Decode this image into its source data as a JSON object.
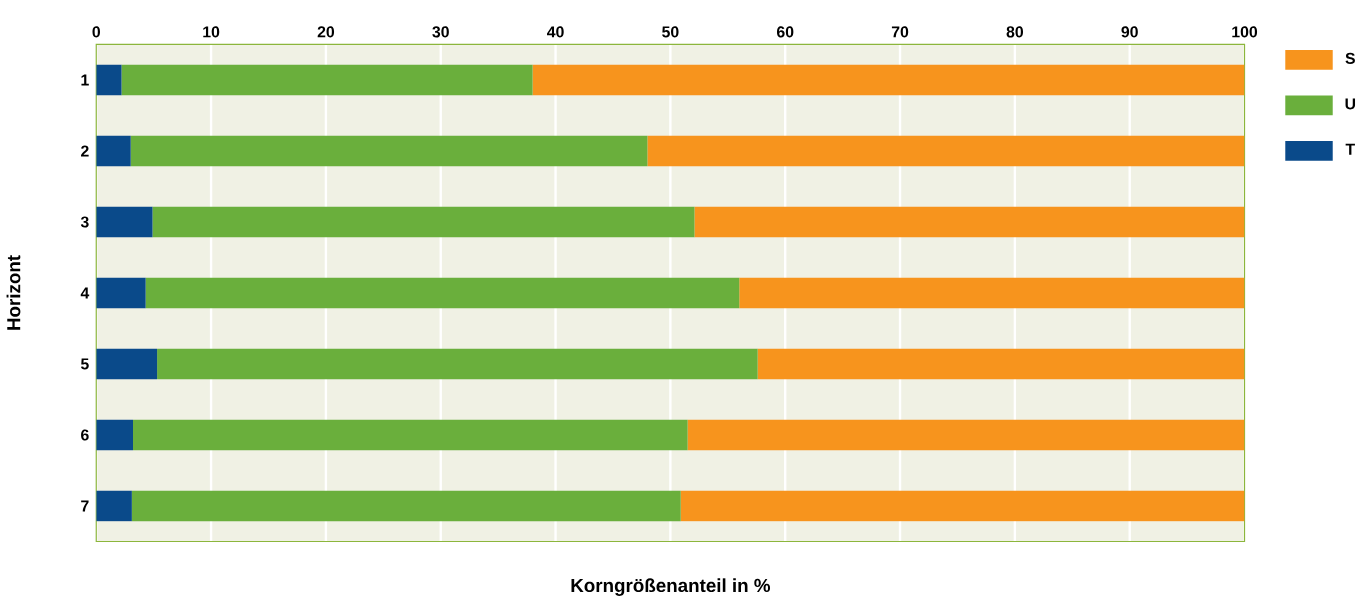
{
  "chart_data": {
    "type": "bar",
    "orientation": "horizontal",
    "stacked": true,
    "xlabel": "Korngrößenanteil in %",
    "ylabel": "Horizont",
    "categories": [
      "1",
      "2",
      "3",
      "4",
      "5",
      "6",
      "7"
    ],
    "series": [
      {
        "name": "T",
        "color": "#0a4a8a",
        "values": [
          2.2,
          3.0,
          4.9,
          4.3,
          5.3,
          3.2,
          3.1
        ]
      },
      {
        "name": "U",
        "color": "#6aaf3c",
        "values": [
          35.8,
          45.0,
          47.2,
          51.7,
          52.3,
          48.3,
          47.8
        ]
      },
      {
        "name": "S",
        "color": "#f7941d",
        "values": [
          62.0,
          52.0,
          47.9,
          44.0,
          42.4,
          48.5,
          49.1
        ]
      }
    ],
    "xlim": [
      0,
      100
    ],
    "xticks": [
      0,
      10,
      20,
      30,
      40,
      50,
      60,
      70,
      80,
      90,
      100
    ],
    "grid": "x",
    "legend": "top right"
  }
}
